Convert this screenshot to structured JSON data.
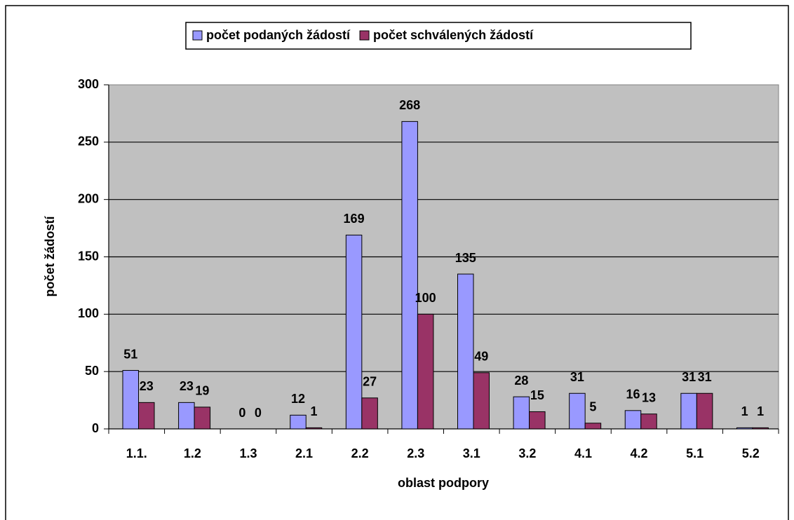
{
  "chart_data": {
    "type": "bar",
    "categories": [
      "1.1.",
      "1.2",
      "1.3",
      "2.1",
      "2.2",
      "2.3",
      "3.1",
      "3.2",
      "4.1",
      "4.2",
      "5.1",
      "5.2"
    ],
    "series": [
      {
        "name": "počet podaných žádostí",
        "color": "#9999ff",
        "values": [
          51,
          23,
          0,
          12,
          169,
          268,
          135,
          28,
          31,
          16,
          31,
          1
        ]
      },
      {
        "name": "počet schválených žádostí",
        "color": "#993366",
        "values": [
          23,
          19,
          0,
          1,
          27,
          100,
          49,
          15,
          5,
          13,
          31,
          1
        ]
      }
    ],
    "xlabel": "oblast podpory",
    "ylabel": "počet žádostí",
    "ylim": [
      0,
      300
    ],
    "yticks": [
      0,
      50,
      100,
      150,
      200,
      250,
      300
    ],
    "grid": true,
    "legend": "top"
  }
}
